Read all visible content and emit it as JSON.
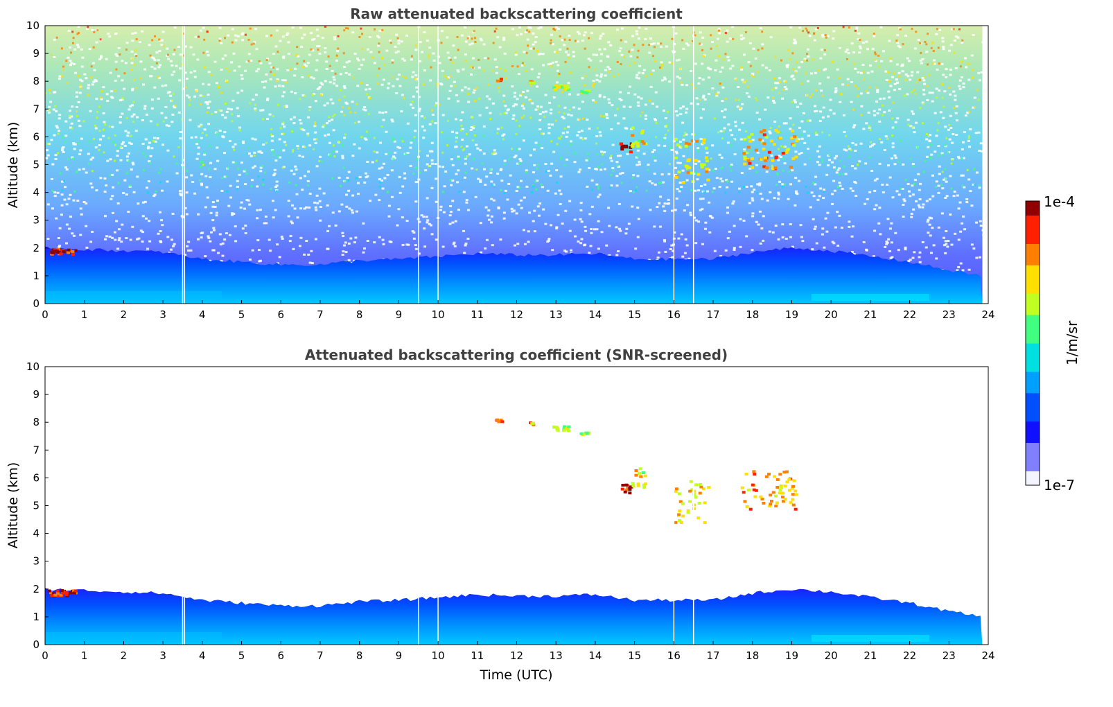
{
  "chart_data": [
    {
      "type": "heatmap",
      "title": "Raw attenuated backscattering coefficient",
      "xlabel": "",
      "ylabel": "Altitude (km)",
      "xlim": [
        0,
        24
      ],
      "ylim": [
        0,
        10
      ],
      "xticks": [
        "0",
        "1",
        "2",
        "3",
        "4",
        "5",
        "6",
        "7",
        "8",
        "9",
        "10",
        "11",
        "12",
        "13",
        "14",
        "15",
        "16",
        "17",
        "18",
        "19",
        "20",
        "21",
        "22",
        "23",
        "24"
      ],
      "yticks": [
        "0",
        "1",
        "2",
        "3",
        "4",
        "5",
        "6",
        "7",
        "8",
        "9",
        "10"
      ],
      "data_end_time": 23.85,
      "gap_times": [
        3.5,
        3.55,
        9.5,
        10.0,
        16.0,
        16.5
      ],
      "boundary_layer_top_km": [
        [
          0,
          2.0
        ],
        [
          1,
          1.95
        ],
        [
          2,
          1.9
        ],
        [
          3,
          1.85
        ],
        [
          4,
          1.6
        ],
        [
          5,
          1.5
        ],
        [
          6,
          1.4
        ],
        [
          7,
          1.4
        ],
        [
          8,
          1.55
        ],
        [
          9,
          1.6
        ],
        [
          10,
          1.7
        ],
        [
          11,
          1.8
        ],
        [
          12,
          1.75
        ],
        [
          13,
          1.75
        ],
        [
          14,
          1.8
        ],
        [
          15,
          1.6
        ],
        [
          16,
          1.6
        ],
        [
          17,
          1.6
        ],
        [
          18,
          1.85
        ],
        [
          19,
          2.0
        ],
        [
          20,
          1.9
        ],
        [
          21,
          1.7
        ],
        [
          22,
          1.5
        ],
        [
          23,
          1.2
        ],
        [
          23.85,
          1.0
        ]
      ],
      "cloud_features": [
        {
          "t": [
            11.45,
            11.6
          ],
          "z": [
            8.05,
            8.15
          ],
          "level": 0.8
        },
        {
          "t": [
            12.3,
            12.4
          ],
          "z": [
            7.95,
            8.05
          ],
          "level": 0.75
        },
        {
          "t": [
            12.9,
            13.3
          ],
          "z": [
            7.75,
            7.9
          ],
          "level": 0.65
        },
        {
          "t": [
            13.6,
            13.8
          ],
          "z": [
            7.6,
            7.7
          ],
          "level": 0.6
        },
        {
          "t": [
            14.6,
            14.9
          ],
          "z": [
            5.5,
            5.8
          ],
          "level": 0.95
        },
        {
          "t": [
            14.9,
            15.25
          ],
          "z": [
            5.7,
            6.4
          ],
          "level": 0.7
        },
        {
          "t": [
            16.0,
            16.85
          ],
          "z": [
            4.4,
            6.0
          ],
          "level": 0.72
        },
        {
          "t": [
            17.7,
            19.1
          ],
          "z": [
            4.9,
            6.3
          ],
          "level": 0.78
        },
        {
          "t": [
            0.05,
            0.75
          ],
          "z": [
            1.8,
            2.0
          ],
          "level": 0.92
        }
      ],
      "legend": "none",
      "grid": false
    },
    {
      "type": "heatmap",
      "title": "Attenuated backscattering coefficient (SNR-screened)",
      "xlabel": "Time (UTC)",
      "ylabel": "Altitude (km)",
      "xlim": [
        0,
        24
      ],
      "ylim": [
        0,
        10
      ],
      "xticks": [
        "0",
        "1",
        "2",
        "3",
        "4",
        "5",
        "6",
        "7",
        "8",
        "9",
        "10",
        "11",
        "12",
        "13",
        "14",
        "15",
        "16",
        "17",
        "18",
        "19",
        "20",
        "21",
        "22",
        "23",
        "24"
      ],
      "yticks": [
        "0",
        "1",
        "2",
        "3",
        "4",
        "5",
        "6",
        "7",
        "8",
        "9",
        "10"
      ],
      "data_end_time": 23.85,
      "gap_times": [
        3.5,
        3.55,
        9.5,
        10.0,
        16.0,
        16.5
      ],
      "legend": "none",
      "grid": false
    }
  ],
  "colorbar": {
    "label": "1/m/sr",
    "max_label": "1e-4",
    "min_label": "1e-7",
    "colormap": "jet-like",
    "stops": [
      "#f4f4ff",
      "#8080ff",
      "#1010ff",
      "#0050ff",
      "#00a0ff",
      "#00e0e0",
      "#40ff80",
      "#c0ff20",
      "#ffe000",
      "#ff8000",
      "#ff2000",
      "#900000"
    ]
  },
  "colors": {
    "background": "#ffffff",
    "axes": "#000000",
    "title": "#404040",
    "gap_line": "#ffffff"
  }
}
